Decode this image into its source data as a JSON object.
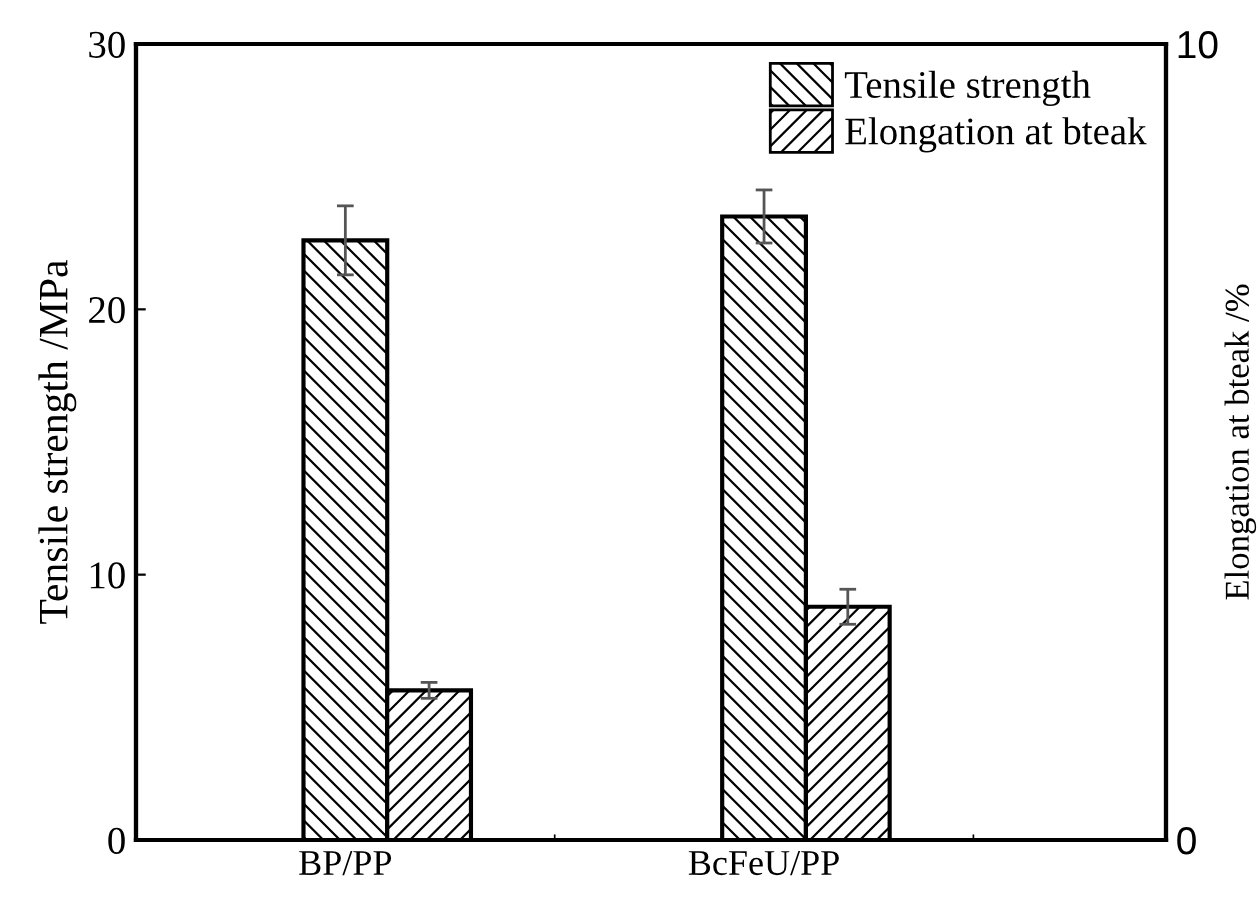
{
  "chart_data": {
    "type": "bar",
    "categories": [
      "BP/PP",
      "BcFeU/PP"
    ],
    "ylabel": "Tensile strength /MPa",
    "y2label": "Elongation at bteak /%",
    "series": [
      {
        "name": "Tensile strength",
        "color": "#000000",
        "values": [
          22.6,
          23.5
        ],
        "errors": [
          1.3,
          1.0
        ]
      },
      {
        "name": "Elongation at bteak",
        "color": "#000000",
        "values": [
          1.88,
          2.93
        ],
        "errors": [
          0.1,
          0.22
        ],
        "axis": "y2"
      }
    ],
    "ylim": [
      0,
      30
    ],
    "yticks": [
      0,
      10,
      20,
      30
    ],
    "y2lim": [
      0,
      10
    ],
    "y2ticks": [
      0,
      10
    ],
    "legend": "top right",
    "grid": false
  }
}
